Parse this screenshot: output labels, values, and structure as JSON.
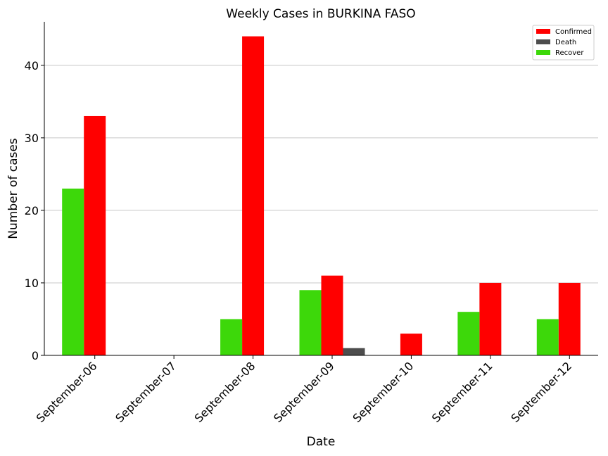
{
  "chart_data": {
    "type": "bar",
    "title": "Weekly Cases in BURKINA FASO",
    "xlabel": "Date",
    "ylabel": "Number of cases",
    "ylim": [
      0,
      46
    ],
    "yticks": [
      0,
      10,
      20,
      30,
      40
    ],
    "grid": "horizontal",
    "legend_position": "top-right",
    "categories": [
      "September-06",
      "September-07",
      "September-08",
      "September-09",
      "September-10",
      "September-11",
      "September-12"
    ],
    "series": [
      {
        "name": "Confirmed",
        "color": "#ff0000",
        "values": [
          33,
          0,
          44,
          11,
          3,
          10,
          10
        ]
      },
      {
        "name": "Death",
        "color": "#4d4d4d",
        "values": [
          0,
          0,
          0,
          1,
          0,
          0,
          0
        ]
      },
      {
        "name": "Recover",
        "color": "#3dd80a",
        "values": [
          23,
          0,
          5,
          9,
          0,
          6,
          5
        ]
      }
    ]
  }
}
